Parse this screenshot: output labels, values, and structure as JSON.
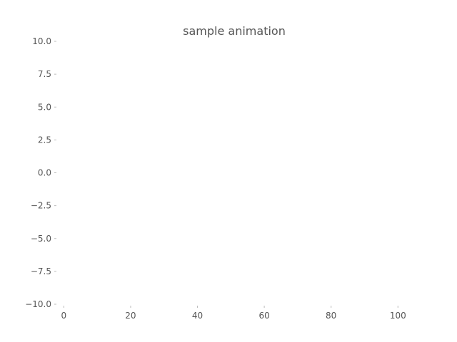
{
  "chart_data": {
    "type": "line",
    "title": "sample animation",
    "xlabel": "",
    "ylabel": "",
    "xlim": [
      -2,
      104
    ],
    "ylim": [
      -10,
      10
    ],
    "x_ticks": [
      {
        "value": 0,
        "label": "0"
      },
      {
        "value": 20,
        "label": "20"
      },
      {
        "value": 40,
        "label": "40"
      },
      {
        "value": 60,
        "label": "60"
      },
      {
        "value": 80,
        "label": "80"
      },
      {
        "value": 100,
        "label": "100"
      }
    ],
    "y_ticks": [
      {
        "value": 10,
        "label": "10.0"
      },
      {
        "value": 7.5,
        "label": "7.5"
      },
      {
        "value": 5,
        "label": "5.0"
      },
      {
        "value": 2.5,
        "label": "2.5"
      },
      {
        "value": 0,
        "label": "0.0"
      },
      {
        "value": -2.5,
        "label": "−2.5"
      },
      {
        "value": -5,
        "label": "−5.0"
      },
      {
        "value": -7.5,
        "label": "−7.5"
      },
      {
        "value": -10,
        "label": "−10.0"
      }
    ],
    "grid": false,
    "frame": false,
    "series": []
  }
}
